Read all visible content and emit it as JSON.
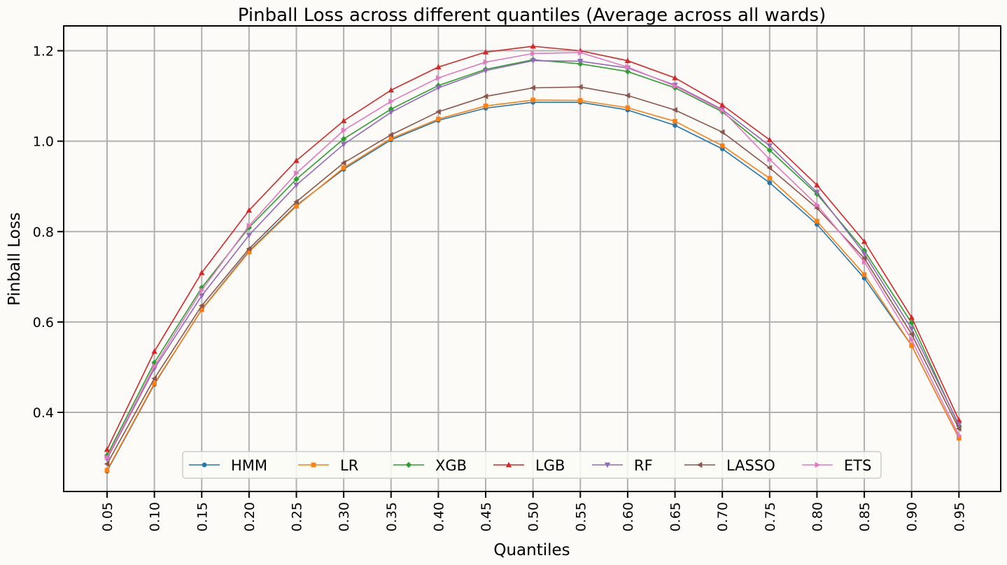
{
  "chart_data": {
    "type": "line",
    "title": "Pinball Loss across different quantiles (Average across all wards)",
    "xlabel": "Quantiles",
    "ylabel": "Pinball Loss",
    "x_ticks": [
      "0.05",
      "0.10",
      "0.15",
      "0.20",
      "0.25",
      "0.30",
      "0.35",
      "0.40",
      "0.45",
      "0.50",
      "0.55",
      "0.60",
      "0.65",
      "0.70",
      "0.75",
      "0.80",
      "0.85",
      "0.90",
      "0.95"
    ],
    "x": [
      0.05,
      0.1,
      0.15,
      0.2,
      0.25,
      0.3,
      0.35,
      0.4,
      0.45,
      0.5,
      0.55,
      0.6,
      0.65,
      0.7,
      0.75,
      0.8,
      0.85,
      0.9,
      0.95
    ],
    "y_ticks": [
      "0.4",
      "0.6",
      "0.8",
      "1.0",
      "1.2"
    ],
    "ylim": [
      0.225,
      1.255
    ],
    "grid": true,
    "legend_position": "bottom-center",
    "series": [
      {
        "name": "HMM",
        "color": "#1f77b4",
        "marker": "circle",
        "values": [
          0.27,
          0.462,
          0.628,
          0.757,
          0.858,
          0.938,
          1.003,
          1.046,
          1.073,
          1.086,
          1.086,
          1.069,
          1.035,
          0.983,
          0.908,
          0.816,
          0.697,
          0.548,
          0.343
        ]
      },
      {
        "name": "LR",
        "color": "#ff7f0e",
        "marker": "square",
        "values": [
          0.272,
          0.464,
          0.627,
          0.755,
          0.856,
          0.941,
          1.006,
          1.049,
          1.078,
          1.091,
          1.09,
          1.074,
          1.044,
          0.99,
          0.918,
          0.823,
          0.705,
          0.548,
          0.343
        ]
      },
      {
        "name": "XGB",
        "color": "#2ca02c",
        "marker": "diamond",
        "values": [
          0.305,
          0.51,
          0.676,
          0.809,
          0.916,
          1.005,
          1.071,
          1.123,
          1.159,
          1.18,
          1.171,
          1.154,
          1.118,
          1.065,
          0.98,
          0.883,
          0.758,
          0.598,
          0.37
        ]
      },
      {
        "name": "LGB",
        "color": "#d62728",
        "marker": "triangle-up",
        "values": [
          0.318,
          0.535,
          0.709,
          0.847,
          0.957,
          1.045,
          1.113,
          1.164,
          1.197,
          1.21,
          1.2,
          1.178,
          1.14,
          1.08,
          1.003,
          0.903,
          0.778,
          0.61,
          0.383
        ]
      },
      {
        "name": "RF",
        "color": "#9467bd",
        "marker": "triangle-down",
        "values": [
          0.297,
          0.497,
          0.658,
          0.792,
          0.903,
          0.993,
          1.064,
          1.118,
          1.156,
          1.178,
          1.177,
          1.162,
          1.124,
          1.07,
          0.99,
          0.887,
          0.751,
          0.585,
          0.373
        ]
      },
      {
        "name": "LASSO",
        "color": "#8c564b",
        "marker": "triangle-left",
        "values": [
          0.286,
          0.475,
          0.636,
          0.762,
          0.866,
          0.952,
          1.014,
          1.065,
          1.099,
          1.118,
          1.12,
          1.101,
          1.069,
          1.02,
          0.941,
          0.852,
          0.741,
          0.573,
          0.364
        ]
      },
      {
        "name": "ETS",
        "color": "#e377c2",
        "marker": "triangle-right",
        "values": [
          0.3,
          0.502,
          0.67,
          0.813,
          0.929,
          1.024,
          1.088,
          1.14,
          1.175,
          1.194,
          1.196,
          1.164,
          1.122,
          1.068,
          0.96,
          0.859,
          0.733,
          0.561,
          0.349
        ]
      }
    ]
  }
}
